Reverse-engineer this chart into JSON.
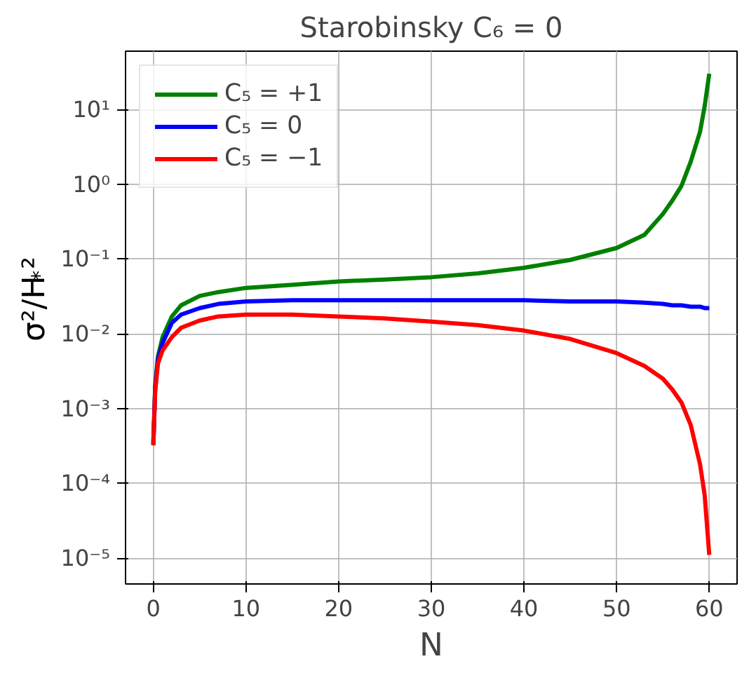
{
  "chart_data": {
    "type": "line",
    "title": "Starobinsky C₆ = 0",
    "xlabel": "N",
    "ylabel": "σ²/H$_{*}$²",
    "log": "y",
    "grid": true,
    "legend": "top left",
    "line_style": "solid",
    "marker": "none",
    "xlim": [
      -3,
      63
    ],
    "ylim": [
      4.5e-06,
      60
    ],
    "xticks": [
      0,
      10,
      20,
      30,
      40,
      50,
      60
    ],
    "yticks": [
      {
        "value": 1e-05,
        "label": "10⁻⁵"
      },
      {
        "value": 0.0001,
        "label": "10⁻⁴"
      },
      {
        "value": 0.001,
        "label": "10⁻³"
      },
      {
        "value": 0.01,
        "label": "10⁻²"
      },
      {
        "value": 0.1,
        "label": "10⁻¹"
      },
      {
        "value": 1,
        "label": "10⁰"
      },
      {
        "value": 10,
        "label": "10¹"
      }
    ],
    "x": [
      0,
      0.2,
      0.5,
      1,
      2,
      3,
      5,
      7,
      10,
      15,
      20,
      25,
      30,
      35,
      40,
      45,
      50,
      53,
      55,
      56,
      57,
      58,
      59,
      59.5,
      60
    ],
    "series": [
      {
        "name": "C₅ = +1",
        "color": "#008000",
        "values": [
          0.00035,
          0.002,
          0.005,
          0.009,
          0.017,
          0.024,
          0.032,
          0.036,
          0.041,
          0.045,
          0.05,
          0.053,
          0.057,
          0.064,
          0.076,
          0.097,
          0.14,
          0.21,
          0.4,
          0.6,
          0.95,
          2.0,
          5,
          11,
          30
        ]
      },
      {
        "name": "C₅ = 0",
        "color": "#0000ff",
        "values": [
          0.00033,
          0.0019,
          0.0045,
          0.0075,
          0.014,
          0.018,
          0.022,
          0.025,
          0.027,
          0.028,
          0.028,
          0.028,
          0.028,
          0.028,
          0.028,
          0.027,
          0.027,
          0.026,
          0.025,
          0.024,
          0.024,
          0.023,
          0.023,
          0.022,
          0.022
        ]
      },
      {
        "name": "C₅ = −1",
        "color": "#ff0000",
        "values": [
          0.00032,
          0.0017,
          0.004,
          0.006,
          0.009,
          0.012,
          0.015,
          0.017,
          0.018,
          0.018,
          0.017,
          0.016,
          0.0145,
          0.013,
          0.011,
          0.0085,
          0.0055,
          0.0037,
          0.0025,
          0.0018,
          0.0012,
          0.0006,
          0.00018,
          7e-05,
          1.1e-05
        ]
      }
    ]
  }
}
